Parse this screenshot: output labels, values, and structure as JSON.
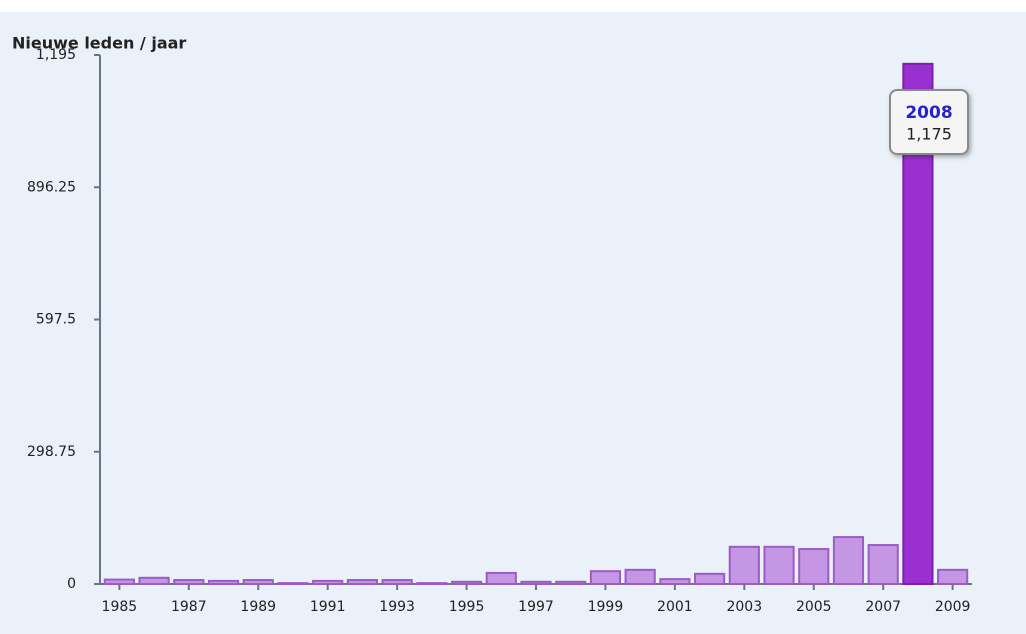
{
  "chart_data": {
    "type": "bar",
    "title": "Nieuwe leden / jaar",
    "categories": [
      "1985",
      null,
      "1987",
      null,
      "1989",
      null,
      "1991",
      null,
      "1993",
      null,
      "1995",
      null,
      "1997",
      null,
      "1999",
      null,
      "2001",
      null,
      "2003",
      null,
      "2005",
      null,
      "2007",
      null,
      "2009"
    ],
    "values": [
      10,
      14,
      9,
      7,
      9,
      2,
      7,
      9,
      9,
      2,
      5,
      25,
      5,
      5,
      29,
      32,
      11,
      23,
      84,
      84,
      79,
      106,
      88,
      1175,
      32
    ],
    "value_labels": [
      null,
      null,
      null,
      null,
      null,
      null,
      null,
      null,
      null,
      null,
      null,
      null,
      null,
      null,
      null,
      null,
      null,
      null,
      null,
      null,
      null,
      null,
      null,
      "1,175",
      null
    ],
    "colors": [
      "#c596e4",
      "#c596e4",
      "#c596e4",
      "#c596e4",
      "#c596e4",
      "#c596e4",
      "#c596e4",
      "#c596e4",
      "#c596e4",
      "#c596e4",
      "#c596e4",
      "#c596e4",
      "#c596e4",
      "#c596e4",
      "#c596e4",
      "#c596e4",
      "#c596e4",
      "#c596e4",
      "#c596e4",
      "#c596e4",
      "#c596e4",
      "#c596e4",
      "#c596e4",
      "#9b30d0",
      "#c596e4"
    ],
    "tooltip": {
      "title": "2008"
    },
    "ylim": [
      0,
      1195
    ],
    "yticks": [
      0,
      298.75,
      597.5,
      896.25,
      {
        "value": 1195,
        "label": "1,195"
      }
    ]
  }
}
